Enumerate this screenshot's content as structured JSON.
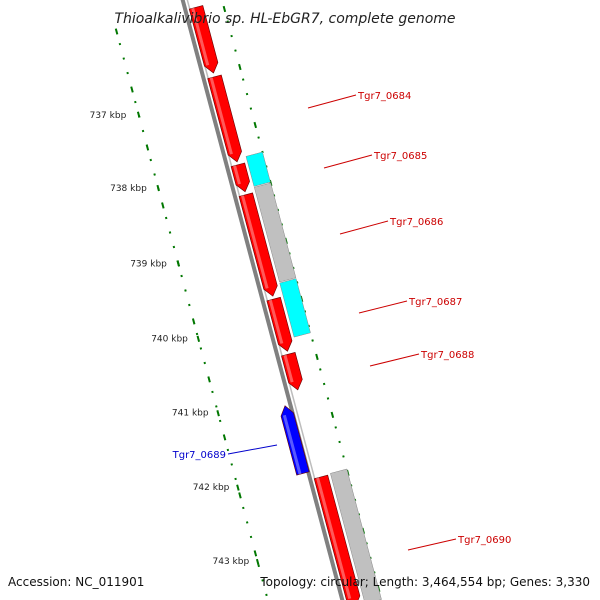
{
  "title": "Thioalkalivibrio sp. HL-EbGR7, complete genome",
  "footer": {
    "accession": "Accession: NC_011901",
    "info": "Topology: circular; Length: 3,464,554 bp; Genes: 3,330"
  },
  "colors": {
    "forward_gene": "#ff0000",
    "reverse_gene": "#0000ff",
    "cyan_feature": "#00ffff",
    "grey_feature": "#c0c0c0",
    "backbone": "#808080",
    "tick": "#007700",
    "forward_label": "#cc0000",
    "reverse_label": "#0000cc"
  },
  "scale_ticks": [
    {
      "label": "737 kbp",
      "kbp": 737
    },
    {
      "label": "738 kbp",
      "kbp": 738
    },
    {
      "label": "739 kbp",
      "kbp": 739
    },
    {
      "label": "740 kbp",
      "kbp": 740
    },
    {
      "label": "741 kbp",
      "kbp": 741
    },
    {
      "label": "742 kbp",
      "kbp": 742
    },
    {
      "label": "743 kbp",
      "kbp": 743
    }
  ],
  "genes": [
    {
      "name": "Tgr7_0684",
      "strand": "+",
      "color": "#ff0000"
    },
    {
      "name": "Tgr7_0685",
      "strand": "+",
      "color": "#ff0000"
    },
    {
      "name": "Tgr7_0686",
      "strand": "+",
      "color": "#ff0000"
    },
    {
      "name": "Tgr7_0687",
      "strand": "+",
      "color": "#ff0000"
    },
    {
      "name": "Tgr7_0688",
      "strand": "+",
      "color": "#ff0000"
    },
    {
      "name": "Tgr7_0689",
      "strand": "-",
      "color": "#0000ff"
    },
    {
      "name": "Tgr7_0690",
      "strand": "+",
      "color": "#ff0000"
    }
  ]
}
